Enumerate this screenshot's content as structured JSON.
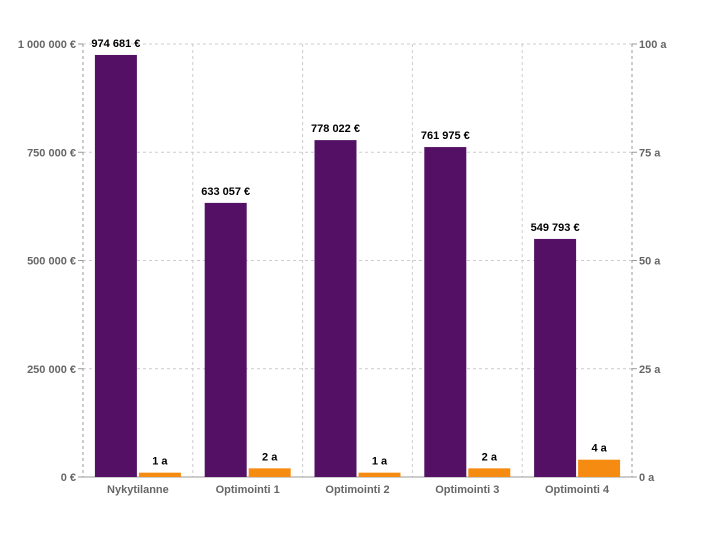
{
  "chart_data": {
    "type": "bar",
    "categories": [
      "Nykytilanne",
      "Optimointi 1",
      "Optimointi 2",
      "Optimointi 3",
      "Optimointi 4"
    ],
    "series": [
      {
        "axis": "left",
        "color": "#531065",
        "values": [
          974681,
          633057,
          778022,
          761975,
          549793
        ],
        "labels": [
          "974 681 €",
          "633 057 €",
          "778 022 €",
          "761 975 €",
          "549 793 €"
        ]
      },
      {
        "axis": "right",
        "color": "#f68b12",
        "values": [
          1,
          2,
          1,
          2,
          4
        ],
        "labels": [
          "1 a",
          "2 a",
          "1 a",
          "2 a",
          "4 a"
        ]
      }
    ],
    "y_left": {
      "min": 0,
      "max": 1000000,
      "ticks": [
        0,
        250000,
        500000,
        750000,
        1000000
      ],
      "tick_labels": [
        "0 €",
        "250 000 €",
        "500 000 €",
        "750 000 €",
        "1 000 000 €"
      ]
    },
    "y_right": {
      "min": 0,
      "max": 100,
      "ticks": [
        0,
        25,
        50,
        75,
        100
      ],
      "tick_labels": [
        "0 a",
        "25 a",
        "50 a",
        "75 a",
        "100 a"
      ]
    },
    "grid": true,
    "legend": "none"
  }
}
